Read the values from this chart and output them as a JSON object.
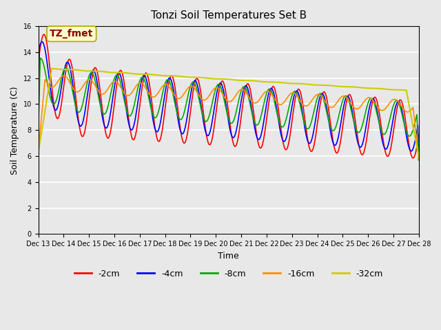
{
  "title": "Tonzi Soil Temperatures Set B",
  "xlabel": "Time",
  "ylabel": "Soil Temperature (C)",
  "ylim": [
    0,
    16
  ],
  "yticks": [
    0,
    2,
    4,
    6,
    8,
    10,
    12,
    14,
    16
  ],
  "annotation_text": "TZ_fmet",
  "annotation_color": "#8b0000",
  "annotation_bg": "#ffffcc",
  "legend_labels": [
    "-2cm",
    "-4cm",
    "-8cm",
    "-16cm",
    "-32cm"
  ],
  "line_colors": [
    "#ff0000",
    "#0000ff",
    "#00aa00",
    "#ff8c00",
    "#cccc00"
  ],
  "line_widths": [
    1.2,
    1.2,
    1.2,
    1.2,
    1.5
  ],
  "n_points": 400,
  "x_start": 13,
  "x_end": 28,
  "xtick_labels": [
    "Dec 13",
    "Dec 14",
    "Dec 15",
    "Dec 16",
    "Dec 17",
    "Dec 18",
    "Dec 19",
    "Dec 20",
    "Dec 21",
    "Dec 22",
    "Dec 23",
    "Dec 24",
    "Dec 25",
    "Dec 26",
    "Dec 27",
    "Dec 28"
  ],
  "xtick_positions": [
    13,
    14,
    15,
    16,
    17,
    18,
    19,
    20,
    21,
    22,
    23,
    24,
    25,
    26,
    27,
    28
  ]
}
